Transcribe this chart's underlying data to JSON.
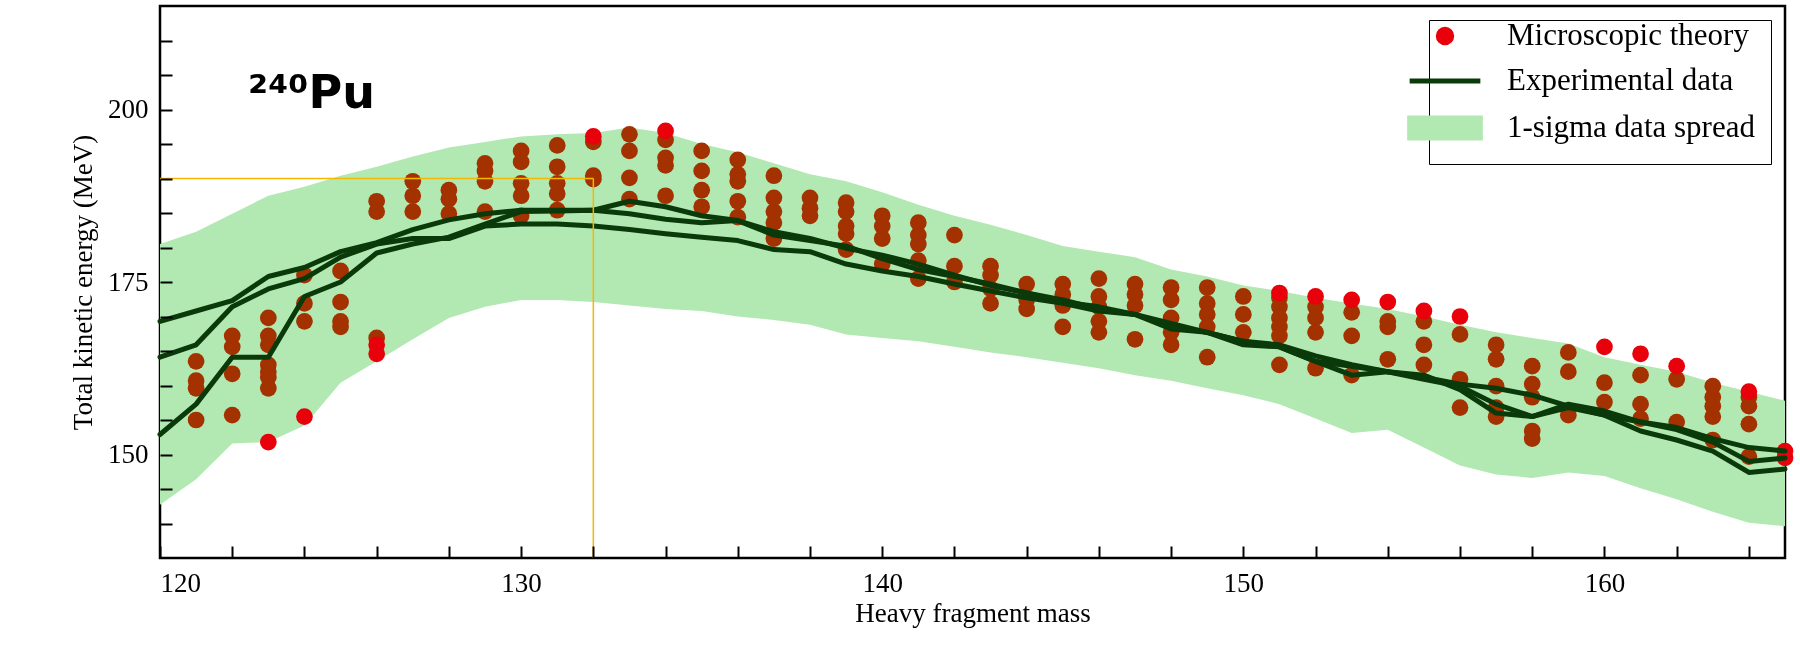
{
  "chart_data": {
    "type": "scatter",
    "xlabel": "Heavy fragment mass",
    "ylabel": "Total kinetic energy (MeV)",
    "annotations": [
      "²⁴⁰Pu"
    ],
    "x": [
      120,
      121,
      122,
      123,
      124,
      125,
      126,
      127,
      128,
      129,
      130,
      131,
      132,
      133,
      134,
      135,
      136,
      137,
      138,
      139,
      140,
      141,
      142,
      143,
      144,
      145,
      146,
      147,
      148,
      149,
      150,
      151,
      152,
      153,
      154,
      155,
      156,
      157,
      158,
      159,
      160,
      161,
      162,
      163,
      164,
      165
    ],
    "xlim": [
      120,
      165
    ],
    "xticks": [
      120,
      {
        "value": 122,
        "label": null
      },
      {
        "value": 124,
        "label": null
      },
      {
        "value": 126,
        "label": null
      },
      {
        "value": 128,
        "label": null
      },
      130,
      {
        "value": 132,
        "label": null
      },
      {
        "value": 134,
        "label": null
      },
      {
        "value": 136,
        "label": null
      },
      {
        "value": 138,
        "label": null
      },
      140,
      {
        "value": 142,
        "label": null
      },
      {
        "value": 144,
        "label": null
      },
      {
        "value": 146,
        "label": null
      },
      {
        "value": 148,
        "label": null
      },
      150,
      {
        "value": 152,
        "label": null
      },
      {
        "value": 154,
        "label": null
      },
      {
        "value": 156,
        "label": null
      },
      {
        "value": 158,
        "label": null
      },
      160,
      {
        "value": 162,
        "label": null
      },
      {
        "value": 164,
        "label": null
      }
    ],
    "ylim": [
      135,
      215
    ],
    "yticks": [
      {
        "value": 140,
        "label": null
      },
      {
        "value": 145,
        "label": null
      },
      150,
      {
        "value": 155,
        "label": null
      },
      {
        "value": 160,
        "label": null
      },
      {
        "value": 165,
        "label": null
      },
      {
        "value": 170,
        "label": null
      },
      175,
      {
        "value": 180,
        "label": null
      },
      {
        "value": 185,
        "label": null
      },
      {
        "value": 190,
        "label": null
      },
      {
        "value": 195,
        "label": null
      },
      200,
      {
        "value": 205,
        "label": null
      },
      {
        "value": 210,
        "label": null
      }
    ],
    "legend": "top right",
    "ref_lines": [
      {
        "axis": "x",
        "value": 132,
        "color": "#f5b800"
      },
      {
        "axis": "y",
        "value": 190,
        "color": "#f5b800"
      }
    ],
    "series": [
      {
        "name": "Microscopic theory",
        "color": "#e8000b",
        "x": [
          123,
          124,
          126,
          126,
          132,
          134,
          151,
          152,
          153,
          154,
          155,
          156,
          160,
          161,
          162,
          164,
          165,
          165
        ],
        "values": [
          151.8,
          155.5,
          165.9,
          164.6,
          196.1,
          196.9,
          173.4,
          172.9,
          172.4,
          172.1,
          170.8,
          170,
          165.6,
          164.6,
          162.8,
          159.1,
          150.5,
          149.5
        ]
      },
      {
        "name": "Experimental data",
        "type": "line",
        "color": "#0a3a0a",
        "values": [
          169.3,
          170.8,
          172.3,
          175.8,
          177.1,
          179.4,
          180.7,
          182.6,
          184,
          184.9,
          185.4,
          185.4,
          185.4,
          186.7,
          185.9,
          184.6,
          183.9,
          181.8,
          181,
          180.2,
          178.4,
          176.8,
          175.8,
          174.7,
          173.4,
          172.4,
          171.1,
          170.3,
          168.5,
          167.7,
          166.4,
          165.9,
          164.3,
          163,
          162,
          161.2,
          160.2,
          159.6,
          158.6,
          157,
          155.7,
          154.7,
          153.9,
          152.3,
          151,
          150.5
        ]
      },
      {
        "name": "1-sigma data spread",
        "type": "area",
        "color": "#b2e8b2",
        "values": [
          null,
          null,
          null,
          null,
          null,
          null,
          null,
          null,
          null,
          null,
          null,
          null,
          null,
          null,
          null,
          null,
          null,
          null,
          null,
          null,
          null,
          null,
          null,
          null,
          null,
          null,
          null,
          null,
          null,
          null,
          null,
          null,
          null,
          null,
          null,
          null,
          null,
          null,
          null,
          null,
          null,
          null,
          null,
          null,
          null,
          null
        ],
        "lower": [
          142.7,
          146.4,
          151.6,
          151.8,
          154.2,
          160.4,
          163.5,
          166.7,
          169.8,
          171.4,
          172.4,
          172.4,
          172.1,
          171.6,
          171.1,
          170.8,
          170,
          169.5,
          168.8,
          167.4,
          166.9,
          166.4,
          165.6,
          164.8,
          164.1,
          163.3,
          162.5,
          161.5,
          160.7,
          159.6,
          158.6,
          157.3,
          155.2,
          153.1,
          153.6,
          151,
          148.4,
          147.1,
          146.6,
          147.4,
          146.9,
          145.1,
          143.5,
          141.7,
          140.1,
          139.6
        ],
        "upper": [
          180.5,
          182.3,
          184.9,
          187.5,
          188.8,
          190.4,
          191.7,
          193.2,
          194.5,
          195.3,
          196.1,
          196.4,
          196.6,
          197.4,
          196.6,
          195,
          193.8,
          192.2,
          190.6,
          189.6,
          188,
          186.2,
          184.6,
          183.3,
          181.8,
          180.2,
          179.4,
          178.6,
          176.8,
          175.8,
          174.5,
          173.7,
          172.7,
          171.9,
          171.1,
          170,
          168.8,
          167.7,
          166.9,
          166.1,
          164.1,
          163,
          162,
          160.4,
          159.1,
          157.8
        ]
      },
      {
        "color": "#a33200",
        "x": [
          121,
          121,
          121,
          121,
          122,
          122,
          122,
          122,
          123,
          123,
          123,
          123,
          123,
          123,
          123,
          124,
          124,
          124,
          125,
          125,
          125,
          125,
          126,
          126,
          126,
          127,
          127,
          127,
          128,
          128,
          128,
          129,
          129,
          129,
          129,
          130,
          130,
          130,
          130,
          130,
          131,
          131,
          131,
          131,
          131,
          132,
          132,
          132,
          133,
          133,
          133,
          133,
          134,
          134,
          134,
          134,
          135,
          135,
          135,
          135,
          136,
          136,
          136,
          136,
          136,
          137,
          137,
          137,
          137,
          137,
          138,
          138,
          138,
          139,
          139,
          139,
          139,
          139,
          140,
          140,
          140,
          140,
          141,
          141,
          141,
          141,
          141,
          142,
          142,
          142,
          143,
          143,
          143,
          143,
          144,
          144,
          144,
          145,
          145,
          145,
          145,
          146,
          146,
          146,
          146,
          146,
          147,
          147,
          147,
          147,
          148,
          148,
          148,
          148,
          148,
          149,
          149,
          149,
          149,
          149,
          150,
          150,
          150,
          151,
          151,
          151,
          151,
          151,
          151,
          152,
          152,
          152,
          152,
          153,
          153,
          153,
          154,
          154,
          154,
          155,
          155,
          155,
          156,
          156,
          156,
          157,
          157,
          157,
          157,
          157,
          158,
          158,
          158,
          158,
          158,
          159,
          159,
          159,
          160,
          160,
          161,
          161,
          161,
          162,
          162,
          163,
          163,
          163,
          163,
          163,
          164,
          164,
          164,
          164
        ],
        "values": [
          163.5,
          160.7,
          159.6,
          155,
          167.2,
          165.6,
          161.7,
          155.7,
          169.8,
          167.2,
          165.9,
          163,
          162,
          159.6,
          161.2,
          176,
          171.9,
          169.3,
          176.6,
          172.1,
          169.3,
          168.5,
          186.7,
          185.2,
          166.9,
          189.6,
          187.5,
          185.2,
          188.3,
          187,
          184.9,
          192.2,
          191.1,
          189.6,
          185.2,
          194,
          192.4,
          189.3,
          187.5,
          184.6,
          194.8,
          191.7,
          189.3,
          187.8,
          185.4,
          195.3,
          190.4,
          189.9,
          196.4,
          194,
          190.1,
          187,
          195.6,
          193,
          191.9,
          187.5,
          194,
          191.1,
          188.3,
          185.9,
          192.7,
          190.6,
          189.6,
          186.7,
          184.4,
          190.4,
          187.2,
          185.2,
          183.6,
          181.3,
          187.2,
          185.7,
          184.6,
          186.5,
          185.2,
          183.1,
          182,
          179.7,
          184.6,
          183.1,
          181.3,
          177.6,
          183.6,
          181.8,
          180.5,
          178.1,
          175.5,
          181.8,
          177.3,
          175,
          177.3,
          176,
          174,
          171.9,
          174.7,
          172.4,
          171.1,
          174.7,
          173.2,
          171.6,
          168.5,
          175.5,
          172.9,
          171.4,
          169.3,
          167.7,
          174.7,
          173.2,
          171.6,
          166.7,
          174.2,
          172.4,
          169.8,
          167.7,
          165.9,
          174.2,
          171.9,
          170.3,
          168.5,
          164.1,
          172.9,
          170.3,
          167.7,
          172.7,
          171.4,
          169.8,
          168.5,
          167.2,
          163,
          171.4,
          169.8,
          167.7,
          162.5,
          170.6,
          167.2,
          161.5,
          169.3,
          168.5,
          163.8,
          169.3,
          165.9,
          163,
          167.4,
          160.9,
          156.8,
          165.9,
          163.8,
          159.9,
          156.8,
          155.5,
          162.8,
          160.2,
          158.3,
          152.3,
          153.4,
          164.8,
          162,
          155.7,
          160.4,
          157.6,
          161.5,
          157.3,
          155.2,
          160.9,
          154.7,
          159.9,
          158.3,
          157,
          155.5,
          152.1,
          158.3,
          157,
          154.4,
          149.7
        ]
      },
      {
        "type": "line",
        "color": "#0a3a0a",
        "values": [
          164.1,
          165.9,
          171.4,
          174,
          175.5,
          178.6,
          180.5,
          181.3,
          181.3,
          183.1,
          183.4,
          183.4,
          183.1,
          182.6,
          182,
          181.5,
          181,
          179.7,
          179.4,
          177.6,
          176.6,
          175.8,
          174.7,
          173.7,
          172.7,
          171.9,
          170.8,
          170.3,
          168.2,
          167.7,
          165.9,
          165.6,
          163.5,
          161.5,
          162,
          161.5,
          159.4,
          156,
          155.5,
          157.3,
          156.3,
          154.7,
          153.6,
          151.8,
          149,
          149.5
        ]
      },
      {
        "type": "line",
        "color": "#0a3a0a",
        "values": [
          152.9,
          157.3,
          164.1,
          164.1,
          172.9,
          175,
          179.2,
          180.5,
          181.5,
          183.4,
          185.2,
          185.3,
          185.4,
          184.9,
          184.1,
          183.6,
          183.9,
          182.3,
          181.3,
          179.9,
          178.9,
          177.6,
          176,
          174.5,
          173.4,
          172.1,
          171.4,
          170.3,
          169,
          167.7,
          166.4,
          165.6,
          163.5,
          162.8,
          162,
          160.9,
          159.9,
          157.3,
          155.5,
          156.8,
          155.7,
          153.4,
          152.1,
          150.5,
          147.4,
          147.9
        ]
      }
    ]
  }
}
